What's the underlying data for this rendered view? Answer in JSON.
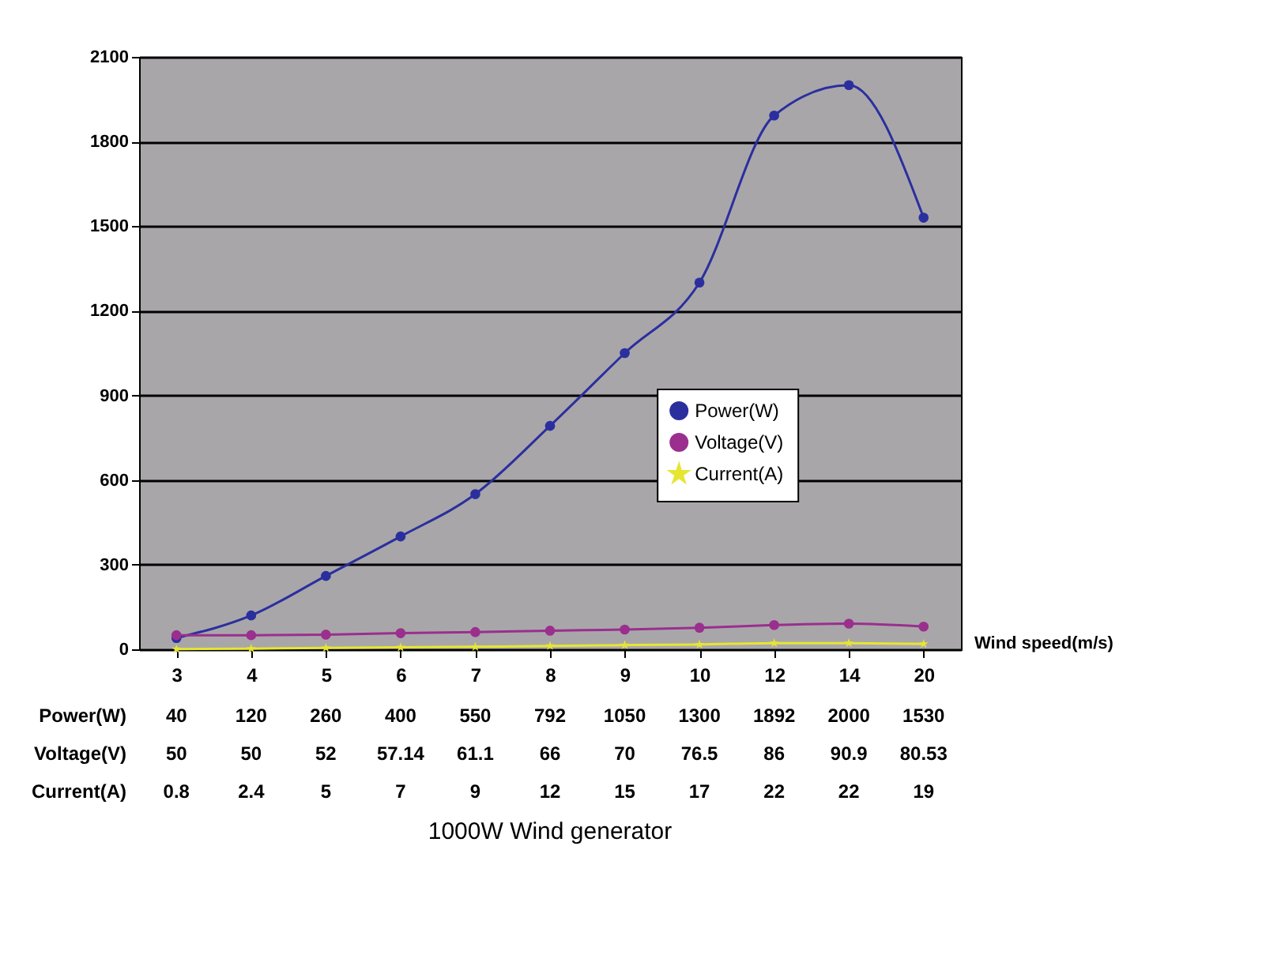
{
  "chart_data": {
    "type": "line",
    "title": "1000W Wind generator",
    "xlabel": "Wind speed(m/s)",
    "categories": [
      "3",
      "4",
      "5",
      "6",
      "7",
      "8",
      "9",
      "10",
      "12",
      "14",
      "20"
    ],
    "series": [
      {
        "name": "Power(W)",
        "color": "#2b2f9e",
        "marker": "circle",
        "values": [
          40,
          120,
          260,
          400,
          550,
          792,
          1050,
          1300,
          1892,
          2000,
          1530
        ]
      },
      {
        "name": "Voltage(V)",
        "color": "#9a2f8e",
        "marker": "circle",
        "values": [
          50,
          50,
          52,
          57.14,
          61.1,
          66,
          70,
          76.5,
          86,
          90.9,
          80.53
        ]
      },
      {
        "name": "Current(A)",
        "color": "#e6e632",
        "marker": "star",
        "values": [
          0.8,
          2.4,
          5,
          7,
          9,
          12,
          15,
          17,
          22,
          22,
          19
        ]
      }
    ],
    "ylim": [
      0,
      2100
    ],
    "yticks": [
      0,
      300,
      600,
      900,
      1200,
      1500,
      1800,
      2100
    ],
    "grid": "y",
    "legend": "right",
    "data_labels": true
  }
}
